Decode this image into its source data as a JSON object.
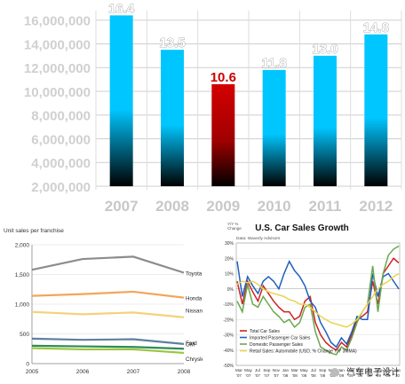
{
  "chart_data": [
    {
      "type": "bar",
      "categories": [
        "2007",
        "2008",
        "2009",
        "2010",
        "2011",
        "2012"
      ],
      "values": [
        16.4,
        13.5,
        10.6,
        11.8,
        13.0,
        14.8
      ],
      "data_labels": [
        "16.4",
        "13.5",
        "10.6",
        "11.8",
        "13.0",
        "14.8"
      ],
      "highlight": "2009",
      "colors": {
        "normal_top": "#00c6ff",
        "normal_bottom": "#000000",
        "highlight_top": "#d40000",
        "highlight_bottom": "#000000",
        "label_normal": "#ffffff",
        "label_highlight": "#cc0000"
      },
      "yticks": [
        "2,000,000",
        "4,000,000",
        "6,000,000",
        "8,000,000",
        "10,000,000",
        "12,000,000",
        "14,000,000",
        "16,000,000"
      ],
      "ylim": [
        2000000,
        16800000
      ],
      "grid": true
    },
    {
      "type": "line",
      "ylabel": "Unit sales per franchise",
      "x": [
        "2005",
        "2006",
        "2007",
        "2008"
      ],
      "yticks": [
        "0",
        "500",
        "1,000",
        "1,500",
        "2,000"
      ],
      "ylim": [
        0,
        2000
      ],
      "series": [
        {
          "name": "Toyota",
          "values": [
            1580,
            1760,
            1800,
            1530
          ],
          "color": "#8c8c8c"
        },
        {
          "name": "Honda",
          "values": [
            1140,
            1170,
            1210,
            1110
          ],
          "color": "#f2a65a"
        },
        {
          "name": "Nissan",
          "values": [
            870,
            830,
            860,
            780
          ],
          "color": "#f5d17a"
        },
        {
          "name": "Ford",
          "values": [
            420,
            400,
            410,
            330
          ],
          "color": "#5f7fa0"
        },
        {
          "name": "GM",
          "values": [
            300,
            290,
            280,
            250
          ],
          "color": "#2e8b57"
        },
        {
          "name": "Chrysler",
          "values": [
            260,
            240,
            240,
            180
          ],
          "color": "#9bc53d"
        }
      ]
    },
    {
      "type": "line",
      "title": "U.S. Car Sales Growth",
      "ylabel": "Y/Y % Change",
      "source": "Data: Waverly Advisors",
      "yticks": [
        "30%",
        "20%",
        "10%",
        "0%",
        "-10%",
        "-20%",
        "-30%",
        "-40%",
        "-50%"
      ],
      "ylim": [
        -50,
        30
      ],
      "xticks": [
        "Mar '07",
        "May '07",
        "Jul '07",
        "Sep '07",
        "Nov '07",
        "Jan '08",
        "Mar '08",
        "May '08",
        "Jul '08",
        "Sep '08",
        "Nov '08",
        "Jan '09",
        "Mar '09",
        "May '09",
        "Jul '09",
        "Sep '09",
        "Nov '09",
        "Jan '10"
      ],
      "series": [
        {
          "name": "Total Car Sales",
          "color": "#cc2222",
          "values": [
            5,
            -10,
            5,
            -2,
            -8,
            2,
            -3,
            -8,
            -12,
            -15,
            -15,
            -20,
            -18,
            -8,
            -5,
            -22,
            -30,
            -35,
            -38,
            -40,
            -35,
            -38,
            -30,
            -20,
            -18,
            -15,
            5,
            -10,
            10,
            15,
            20,
            17
          ]
        },
        {
          "name": "Imported Passenger Car Sales",
          "color": "#1f5fbf",
          "values": [
            18,
            -5,
            8,
            2,
            -3,
            5,
            8,
            5,
            0,
            10,
            18,
            12,
            8,
            2,
            -8,
            -12,
            -22,
            -28,
            -35,
            -38,
            -32,
            -36,
            -28,
            -18,
            -20,
            -20,
            10,
            -5,
            8,
            10,
            5,
            0
          ]
        },
        {
          "name": "Domestic Passenger Sales",
          "color": "#6aa84f",
          "values": [
            -8,
            -15,
            3,
            -10,
            -12,
            -5,
            -10,
            -15,
            -18,
            -22,
            -20,
            -25,
            -22,
            -12,
            -10,
            -28,
            -38,
            -40,
            -42,
            -43,
            -38,
            -40,
            -32,
            -22,
            -15,
            -10,
            15,
            -15,
            10,
            22,
            26,
            28
          ]
        },
        {
          "name": "Retail Sales: Automobile (USD, % Change Y/Y 3MMA)",
          "color": "#e8d44d",
          "values": [
            3,
            5,
            4,
            5,
            3,
            0,
            -2,
            -3,
            -4,
            -5,
            -7,
            -8,
            -10,
            -10,
            -12,
            -15,
            -18,
            -20,
            -22,
            -23,
            -24,
            -25,
            -23,
            -20,
            -15,
            -10,
            -5,
            0,
            3,
            5,
            8,
            10
          ]
        }
      ],
      "legend_position": "bottom-left"
    }
  ],
  "watermark": "汽车电子设计"
}
